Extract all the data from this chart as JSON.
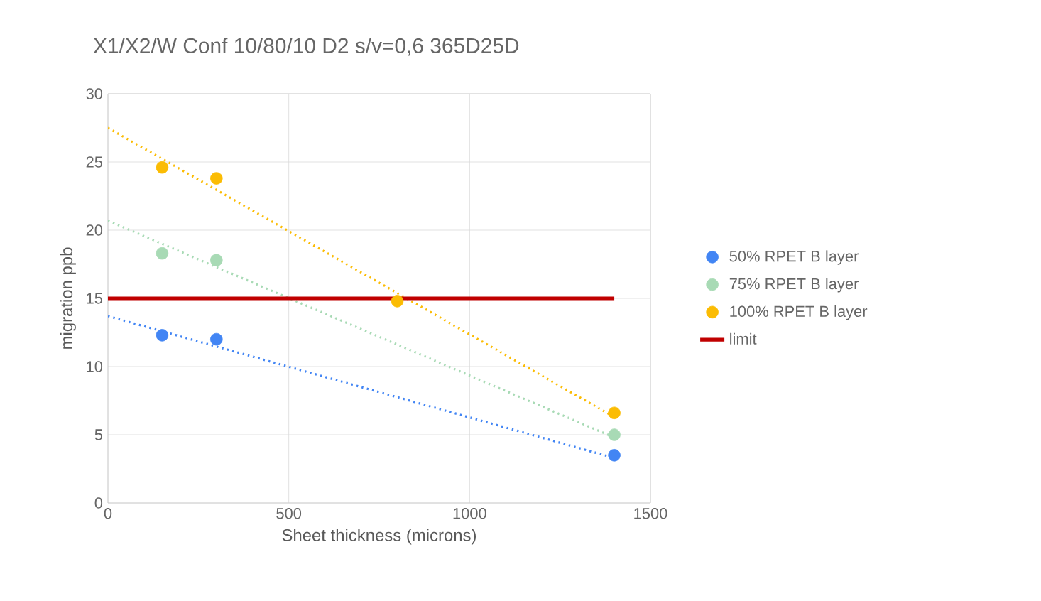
{
  "chart_data": {
    "type": "scatter",
    "title": "X1/X2/W Conf 10/80/10 D2  s/v=0,6 365D25D",
    "xlabel": "Sheet thickness (microns)",
    "ylabel": "migration ppb",
    "xlim": [
      0,
      1500
    ],
    "ylim": [
      0,
      30
    ],
    "xticks": [
      0,
      500,
      1000,
      1500
    ],
    "yticks": [
      0,
      5,
      10,
      15,
      20,
      25,
      30
    ],
    "grid": true,
    "legend": "right",
    "series": [
      {
        "name": "50% RPET B layer",
        "marker": "circle",
        "color": "#4285f4",
        "x": [
          150,
          300,
          1400
        ],
        "values": [
          12.3,
          12.0,
          3.5
        ]
      },
      {
        "name": "75% RPET B layer",
        "marker": "circle",
        "color": "#a8dab5",
        "x": [
          150,
          300,
          1400
        ],
        "values": [
          18.3,
          17.8,
          5.0
        ]
      },
      {
        "name": "100% RPET B layer",
        "marker": "circle",
        "color": "#fbbc04",
        "x": [
          150,
          300,
          800,
          1400
        ],
        "values": [
          24.6,
          23.8,
          14.8,
          6.6
        ]
      },
      {
        "name": "limit",
        "type": "line",
        "marker": "none",
        "color": "#c00000",
        "x": [
          0,
          1400
        ],
        "values": [
          15,
          15
        ]
      },
      {
        "type": "line",
        "marker": "none",
        "line_style": "dotted",
        "color": "#4285f4",
        "x": [
          0,
          1400
        ],
        "values": [
          13.7,
          3.3
        ]
      },
      {
        "type": "line",
        "marker": "none",
        "line_style": "dotted",
        "color": "#a8dab5",
        "x": [
          0,
          1400
        ],
        "values": [
          20.7,
          4.8
        ]
      },
      {
        "type": "line",
        "marker": "none",
        "line_style": "dotted",
        "color": "#fbbc04",
        "x": [
          0,
          1400
        ],
        "values": [
          27.5,
          6.3
        ]
      }
    ]
  }
}
